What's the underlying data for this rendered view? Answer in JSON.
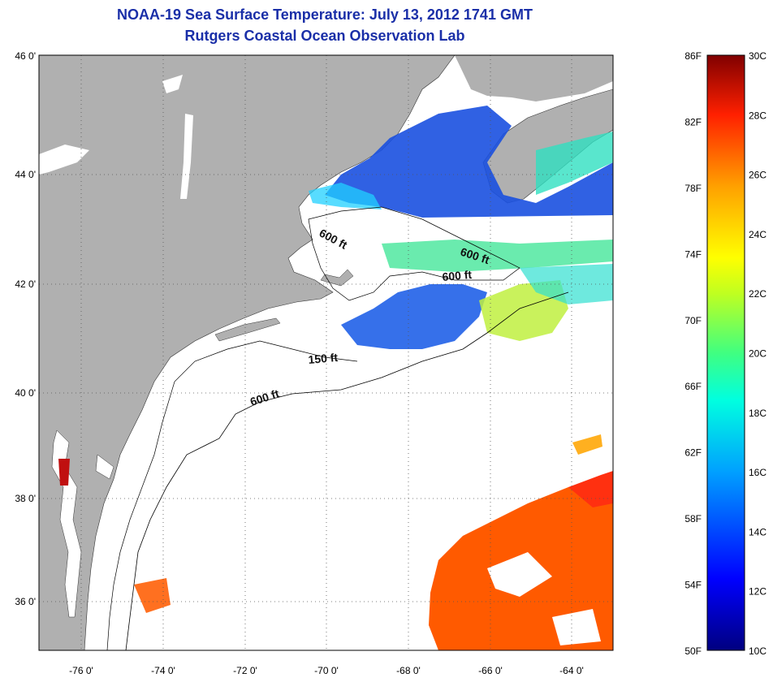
{
  "title": "NOAA-19 Sea Surface Temperature:  July 13, 2012 1741 GMT",
  "subtitle": "Rutgers Coastal Ocean Observation Lab",
  "colors": {
    "land": "#b0b0b0",
    "ocean_nodata": "#ffffff",
    "title": "#1a2fa8"
  },
  "map": {
    "lon_range": [
      -77,
      -63
    ],
    "lat_range": [
      35,
      46
    ],
    "lat_labels": [
      "46 0'",
      "44 0'",
      "42 0'",
      "40 0'",
      "38 0'",
      "36 0'"
    ],
    "lon_labels": [
      "-76 0'",
      "-74 0'",
      "-72 0'",
      "-70 0'",
      "-68 0'",
      "-66 0'",
      "-64 0'"
    ],
    "depth_labels": [
      {
        "text": "600 ft",
        "lon": -70.3,
        "lat": 42.9
      },
      {
        "text": "600 ft",
        "lon": -66.9,
        "lat": 42.5
      },
      {
        "text": "600 ft",
        "lon": -67.6,
        "lat": 42.0
      },
      {
        "text": "150 ft",
        "lon": -70.6,
        "lat": 40.6
      },
      {
        "text": "600 ft",
        "lon": -71.6,
        "lat": 39.9
      }
    ]
  },
  "colorbar": {
    "f_labels": [
      "86F",
      "82F",
      "78F",
      "74F",
      "70F",
      "66F",
      "62F",
      "58F",
      "54F",
      "50F"
    ],
    "c_labels": [
      "30C",
      "28C",
      "26C",
      "24C",
      "22C",
      "20C",
      "18C",
      "16C",
      "14C",
      "12C",
      "10C"
    ],
    "range_c": [
      10,
      30
    ]
  }
}
